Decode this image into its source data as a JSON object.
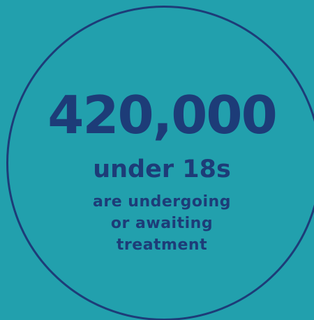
{
  "stat": {
    "number": "420,000",
    "subheading": "under 18s",
    "description": "are undergoing\nor awaiting\ntreatment"
  },
  "colors": {
    "background": "#22a0ad",
    "text": "#1d3c78",
    "ring": "#1d3c78"
  }
}
